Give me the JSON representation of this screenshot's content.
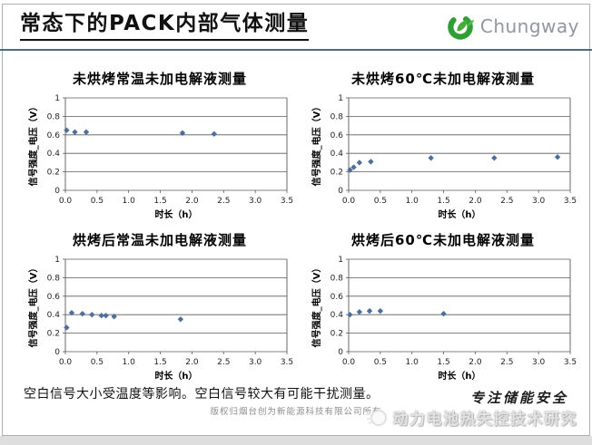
{
  "slide": {
    "title": "常态下的PACK内部气体测量",
    "logo": {
      "brand": "Chungway",
      "icon": "chungway-leaf-icon"
    },
    "note": "空白信号大小受温度等影响。空白信号较大有可能干扰测量。",
    "copyright": "版权归烟台创为新能源科技有限公司所有",
    "footer_slogan": "专注储能安全",
    "footer_brand": "动力电池热失控技术研究"
  },
  "colors": {
    "marker": "#4e6f9e",
    "grid": "#5a5a5a",
    "divider": "#4e6c79",
    "brand_green": "#2f9e35",
    "logo_text_gray": "#90979f"
  },
  "chart_data": [
    {
      "type": "scatter",
      "title": "未烘烤常温未加电解液测量",
      "xlabel": "时长（h）",
      "ylabel": "信号强度_电压（V）",
      "xlim": [
        0,
        3.5
      ],
      "ylim": [
        0,
        1
      ],
      "xticks": [
        "0.0",
        "0.5",
        "1.0",
        "1.5",
        "2.0",
        "2.5",
        "3.0",
        "3.5"
      ],
      "yticks": [
        "0",
        "0.2",
        "0.4",
        "0.6",
        "0.8",
        "1"
      ],
      "grid": "horizontal",
      "legend": "none",
      "points": [
        [
          0.02,
          0.65
        ],
        [
          0.15,
          0.63
        ],
        [
          0.33,
          0.63
        ],
        [
          1.85,
          0.62
        ],
        [
          2.35,
          0.61
        ]
      ]
    },
    {
      "type": "scatter",
      "title": "未烘烤60℃未加电解液测量",
      "xlabel": "时长（h）",
      "ylabel": "信号强度_电压（V）",
      "xlim": [
        0,
        3.5
      ],
      "ylim": [
        0,
        1
      ],
      "xticks": [
        "0.0",
        "0.5",
        "1.0",
        "1.5",
        "2.0",
        "2.5",
        "3.0",
        "3.5"
      ],
      "yticks": [
        "0",
        "0.2",
        "0.4",
        "0.6",
        "0.8",
        "1"
      ],
      "grid": "horizontal",
      "legend": "none",
      "points": [
        [
          0.02,
          0.22
        ],
        [
          0.08,
          0.25
        ],
        [
          0.17,
          0.3
        ],
        [
          0.35,
          0.31
        ],
        [
          1.3,
          0.35
        ],
        [
          2.3,
          0.35
        ],
        [
          3.3,
          0.36
        ]
      ]
    },
    {
      "type": "scatter",
      "title": "烘烤后常温未加电解液测量",
      "xlabel": "时长（h）",
      "ylabel": "信号强度_电压（V）",
      "xlim": [
        0,
        3.5
      ],
      "ylim": [
        0,
        1
      ],
      "xticks": [
        "0.0",
        "0.5",
        "1.0",
        "1.5",
        "2.0",
        "2.5",
        "3.0",
        "3.5"
      ],
      "yticks": [
        "0",
        "0.2",
        "0.4",
        "0.6",
        "0.8",
        "1"
      ],
      "grid": "horizontal",
      "legend": "none",
      "points": [
        [
          0.02,
          0.26
        ],
        [
          0.1,
          0.42
        ],
        [
          0.27,
          0.41
        ],
        [
          0.42,
          0.4
        ],
        [
          0.57,
          0.39
        ],
        [
          0.64,
          0.39
        ],
        [
          0.77,
          0.38
        ],
        [
          1.82,
          0.35
        ]
      ]
    },
    {
      "type": "scatter",
      "title": "烘烤后60℃未加电解液测量",
      "xlabel": "时长（h）",
      "ylabel": "信号强度_电压（V）",
      "xlim": [
        0,
        3.5
      ],
      "ylim": [
        0,
        1
      ],
      "xticks": [
        "0.0",
        "0.5",
        "1.0",
        "1.5",
        "2.0",
        "2.5",
        "3.0",
        "3.5"
      ],
      "yticks": [
        "0",
        "0.2",
        "0.4",
        "0.6",
        "0.8",
        "1"
      ],
      "grid": "horizontal",
      "legend": "none",
      "points": [
        [
          0.02,
          0.4
        ],
        [
          0.17,
          0.43
        ],
        [
          0.33,
          0.44
        ],
        [
          0.5,
          0.44
        ],
        [
          1.5,
          0.41
        ]
      ]
    }
  ]
}
